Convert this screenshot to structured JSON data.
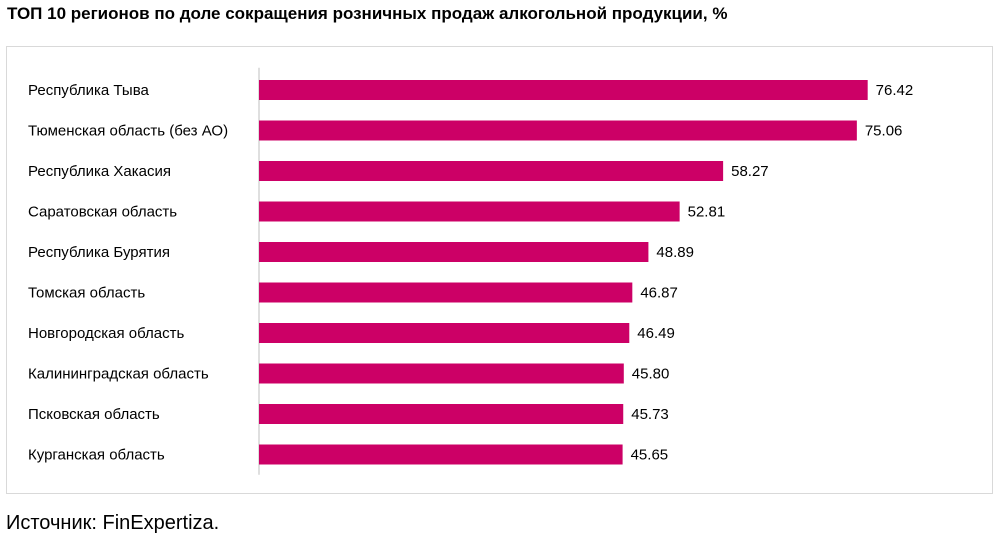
{
  "title": "ТОП 10 регионов по доле сокращения розничных продаж алкогольной продукции, %",
  "source": "Источник: FinExpertiza.",
  "colors": {
    "bar": "#CC0066",
    "axis": "#BFBFBF",
    "frame": "#D9D9D9"
  },
  "chart_data": {
    "type": "bar",
    "orientation": "horizontal",
    "title": "ТОП 10 регионов по доле сокращения розничных продаж алкогольной продукции, %",
    "categories": [
      "Республика Тыва",
      "Тюменская область (без АО)",
      "Республика Хакасия",
      "Саратовская область",
      "Республика Бурятия",
      "Томская область",
      "Новгородская область",
      "Калининградская область",
      "Псковская область",
      "Курганская область"
    ],
    "values": [
      76.42,
      75.06,
      58.27,
      52.81,
      48.89,
      46.87,
      46.49,
      45.8,
      45.73,
      45.65
    ],
    "value_labels": [
      "76.42",
      "75.06",
      "58.27",
      "52.81",
      "48.89",
      "46.87",
      "46.49",
      "45.80",
      "45.73",
      "45.65"
    ],
    "xlim": [
      0,
      80
    ],
    "grid": false,
    "legend": "none"
  }
}
